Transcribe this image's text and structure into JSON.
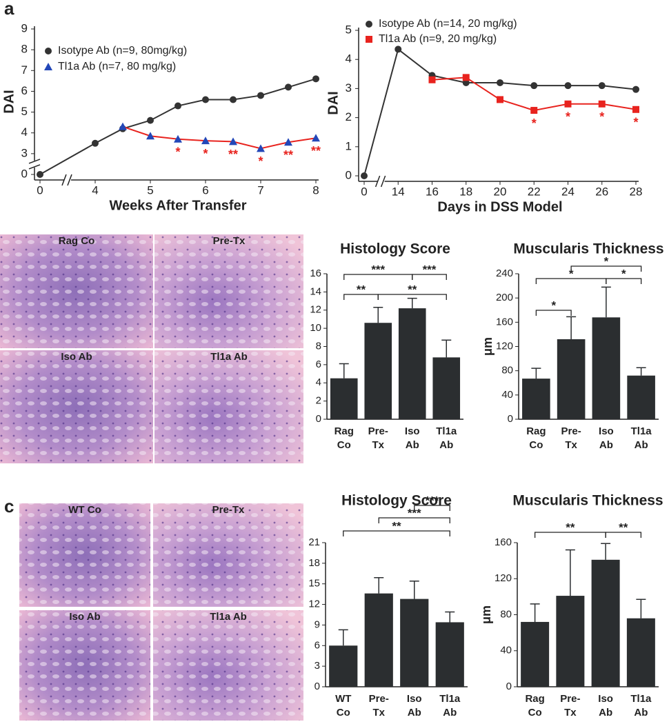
{
  "panel_labels": [
    "a",
    "b",
    "c"
  ],
  "images": {
    "b": [
      "Rag Co",
      "Pre-Tx",
      "Iso Ab",
      "Tl1a Ab"
    ],
    "c": [
      "WT Co",
      "Pre-Tx",
      "Iso Ab",
      "Tl1a Ab"
    ]
  },
  "chart_data": [
    {
      "type": "line",
      "xlabel": "Weeks After Transfer",
      "ylabel": "DAI",
      "xlim": [
        0,
        8
      ],
      "ylim": [
        0,
        9
      ],
      "xticks": [
        0,
        4,
        5,
        6,
        7,
        8
      ],
      "yticks": [
        0,
        3,
        4,
        5,
        6,
        7,
        8,
        9
      ],
      "xbreak": [
        0,
        4
      ],
      "ybreak": [
        0,
        3
      ],
      "legend": "upper left",
      "series": [
        {
          "name": "Isotype Ab (n=9, 80mg/kg)",
          "color": "#333333",
          "marker": "circle",
          "x": [
            0,
            4,
            4.5,
            5,
            5.5,
            6,
            6.5,
            7,
            7.5,
            8
          ],
          "values": [
            0,
            3.5,
            4.2,
            4.6,
            5.3,
            5.6,
            5.6,
            5.8,
            6.2,
            6.6
          ]
        },
        {
          "name": "Tl1a Ab (n=7, 80 mg/kg)",
          "color": "#e8231e",
          "marker": "triangle",
          "x": [
            4.5,
            5,
            5.5,
            6,
            6.5,
            7,
            7.5,
            8
          ],
          "values": [
            4.3,
            3.85,
            3.7,
            3.62,
            3.58,
            3.25,
            3.55,
            3.75
          ],
          "annotations": [
            null,
            null,
            "*",
            "*",
            "**",
            "*",
            "**",
            "**"
          ]
        }
      ]
    },
    {
      "type": "line",
      "xlabel": "Days in DSS Model",
      "ylabel": "DAI",
      "xlim": [
        0,
        28
      ],
      "ylim": [
        0,
        5
      ],
      "xticks": [
        0,
        14,
        16,
        18,
        20,
        22,
        24,
        26,
        28
      ],
      "yticks": [
        0,
        1,
        2,
        3,
        4,
        5
      ],
      "xbreak": [
        0,
        14
      ],
      "legend": "upper center",
      "series": [
        {
          "name": "Isotype Ab (n=14, 20 mg/kg)",
          "color": "#333333",
          "marker": "circle",
          "x": [
            0,
            14,
            16,
            18,
            20,
            22,
            24,
            26,
            28
          ],
          "values": [
            0,
            4.35,
            3.45,
            3.2,
            3.2,
            3.1,
            3.1,
            3.1,
            2.97
          ]
        },
        {
          "name": "Tl1a Ab (n=9, 20 mg/kg)",
          "color": "#e8231e",
          "marker": "square",
          "x": [
            16,
            18,
            20,
            22,
            24,
            26,
            28
          ],
          "values": [
            3.3,
            3.38,
            2.62,
            2.25,
            2.47,
            2.47,
            2.28
          ],
          "annotations": [
            null,
            null,
            null,
            "*",
            "*",
            "*",
            "*"
          ]
        }
      ]
    },
    {
      "type": "bar",
      "title": "Histology Score",
      "categories": [
        [
          "Rag",
          "Co"
        ],
        [
          "Pre-",
          "Tx"
        ],
        [
          "Iso",
          "Ab"
        ],
        [
          "Tl1a",
          "Ab"
        ]
      ],
      "values": [
        4.5,
        10.6,
        12.2,
        6.8
      ],
      "errors": [
        1.6,
        1.7,
        1.1,
        1.9
      ],
      "color": "#2b2e30",
      "ylim": [
        0,
        16
      ],
      "yticks": [
        0,
        2,
        4,
        6,
        8,
        10,
        12,
        14,
        16
      ],
      "brackets": [
        [
          {
            "pair": [
              0,
              1
            ],
            "label": "**"
          },
          {
            "pair": [
              1,
              3
            ],
            "label": "**"
          }
        ],
        [
          {
            "pair": [
              0,
              2
            ],
            "label": "***"
          },
          {
            "pair": [
              2,
              3
            ],
            "label": "***"
          }
        ]
      ]
    },
    {
      "type": "bar",
      "title": "Muscularis Thickness",
      "ylabel": "μm",
      "categories": [
        [
          "Rag",
          "Co"
        ],
        [
          "Pre-",
          "Tx"
        ],
        [
          "Iso",
          "Ab"
        ],
        [
          "Tl1a",
          "Ab"
        ]
      ],
      "values": [
        67,
        132,
        168,
        72
      ],
      "errors": [
        17,
        37,
        50,
        13
      ],
      "color": "#2b2e30",
      "ylim": [
        0,
        240
      ],
      "yticks": [
        0,
        40,
        80,
        120,
        160,
        200,
        240
      ],
      "brackets": [
        [
          {
            "pair": [
              0,
              1
            ],
            "label": "*"
          }
        ],
        [
          {
            "pair": [
              0,
              2
            ],
            "label": "*"
          },
          {
            "pair": [
              2,
              3
            ],
            "label": "*"
          }
        ],
        [
          {
            "pair": [
              1,
              3
            ],
            "label": "*"
          }
        ]
      ]
    },
    {
      "type": "bar",
      "title": "Histology Score",
      "categories": [
        [
          "WT",
          "Co"
        ],
        [
          "Pre-",
          "Tx"
        ],
        [
          "Iso",
          "Ab"
        ],
        [
          "Tl1a",
          "Ab"
        ]
      ],
      "values": [
        6,
        13.6,
        12.8,
        9.4
      ],
      "errors": [
        2.3,
        2.3,
        2.6,
        1.5
      ],
      "color": "#2b2e30",
      "ylim": [
        0,
        21
      ],
      "yticks": [
        0,
        3,
        6,
        9,
        12,
        15,
        18,
        21
      ],
      "brackets": [
        [
          {
            "pair": [
              0,
              3
            ],
            "label": "**"
          }
        ],
        [
          {
            "pair": [
              1,
              3
            ],
            "label": "***"
          }
        ],
        [
          {
            "pair": [
              2,
              3
            ],
            "label": "***"
          }
        ]
      ]
    },
    {
      "type": "bar",
      "title": "Muscularis Thickness",
      "ylabel": "μm",
      "categories": [
        [
          "Rag",
          "Co"
        ],
        [
          "Pre-",
          "Tx"
        ],
        [
          "Iso",
          "Ab"
        ],
        [
          "Tl1a",
          "Ab"
        ]
      ],
      "values": [
        72,
        101,
        141,
        76
      ],
      "errors": [
        20,
        51,
        18,
        21
      ],
      "color": "#2b2e30",
      "ylim": [
        0,
        160
      ],
      "yticks": [
        0,
        40,
        80,
        120,
        160
      ],
      "brackets": [
        [
          {
            "pair": [
              0,
              2
            ],
            "label": "**"
          },
          {
            "pair": [
              2,
              3
            ],
            "label": "**"
          }
        ]
      ]
    }
  ]
}
